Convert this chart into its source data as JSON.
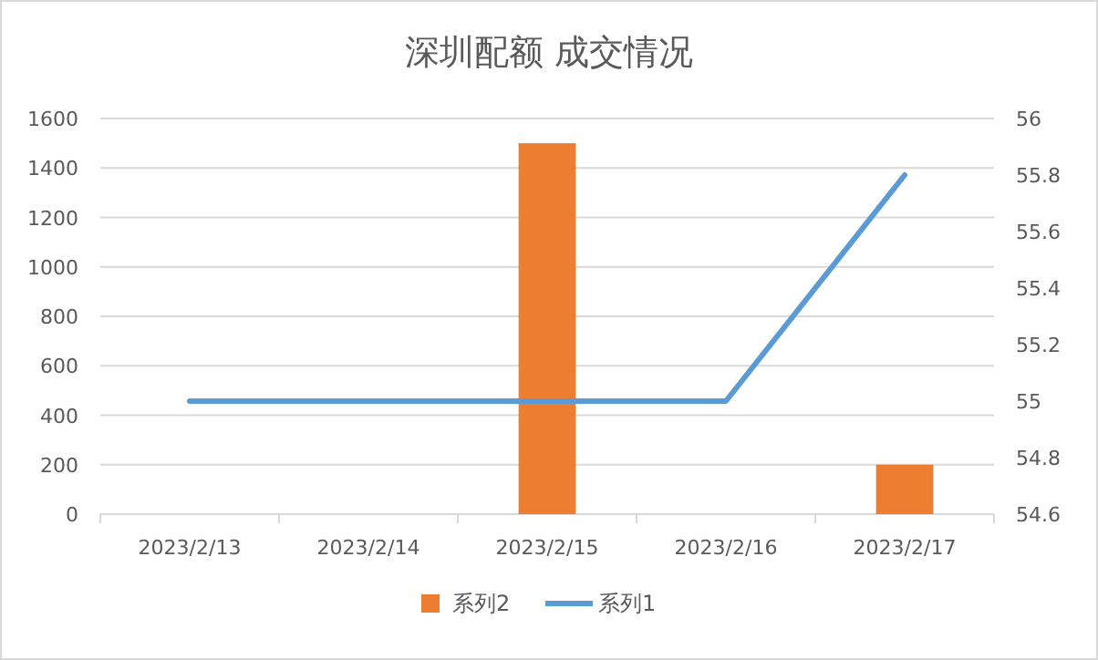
{
  "chart_data": {
    "type": "bar",
    "title": "深圳配额 成交情况",
    "categories": [
      "2023/2/13",
      "2023/2/14",
      "2023/2/15",
      "2023/2/16",
      "2023/2/17"
    ],
    "series": [
      {
        "name": "系列2",
        "color": "#ed7d31",
        "values": [
          null,
          null,
          1500,
          null,
          200
        ]
      },
      {
        "name": "系列1",
        "type": "line",
        "axis": "y2",
        "color": "#5b9bd5",
        "values": [
          55,
          55,
          55,
          55,
          55.8
        ]
      }
    ],
    "ylim": [
      0,
      1600
    ],
    "yticks": [
      0,
      200,
      400,
      600,
      800,
      1000,
      1200,
      1400,
      1600
    ],
    "y2lim": [
      54.6,
      56
    ],
    "y2ticks": [
      54.6,
      54.8,
      55,
      55.2,
      55.4,
      55.6,
      55.8,
      56
    ],
    "grid": "y",
    "legend": "bottom"
  }
}
